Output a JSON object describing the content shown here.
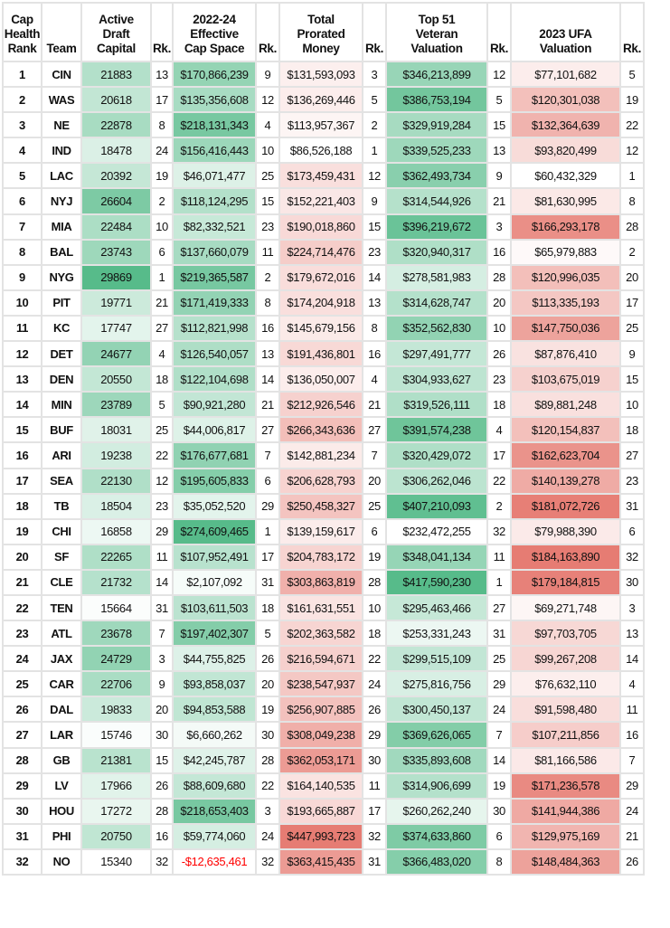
{
  "colors": {
    "green_max": "#57bb8a",
    "red_max": "#e67c73",
    "min": "#ffffff",
    "negative_text": "#ff0000"
  },
  "chart_data": {
    "type": "table",
    "columns": [
      "Cap Health Rank",
      "Team",
      "Active Draft Capital",
      "Rk.",
      "2022-24 Effective Cap Space",
      "Rk.",
      "Total Prorated Money",
      "Rk.",
      "Top 51 Veteran Valuation",
      "Rk.",
      "2023 UFA Valuation",
      "Rk."
    ],
    "color_scales": {
      "Active Draft Capital": "green-high",
      "2022-24 Effective Cap Space": "green-high",
      "Total Prorated Money": "red-high",
      "Top 51 Veteran Valuation": "green-high",
      "2023 UFA Valuation": "red-high"
    }
  },
  "table": {
    "headers": [
      "Cap\nHealth\nRank",
      "Team",
      "Active\nDraft\nCapital",
      "Rk.",
      "2022-24\nEffective\nCap Space",
      "Rk.",
      "Total\nProrated\nMoney",
      "Rk.",
      "Top 51\nVeteran\nValuation",
      "Rk.",
      "2023 UFA\nValuation",
      "Rk."
    ],
    "rows": [
      [
        "1",
        "CIN",
        "21883",
        "13",
        "$170,866,239",
        "9",
        "$131,593,093",
        "3",
        "$346,213,899",
        "12",
        "$77,101,682",
        "5"
      ],
      [
        "2",
        "WAS",
        "20618",
        "17",
        "$135,356,608",
        "12",
        "$136,269,446",
        "5",
        "$386,753,194",
        "5",
        "$120,301,038",
        "19"
      ],
      [
        "3",
        "NE",
        "22878",
        "8",
        "$218,131,343",
        "4",
        "$113,957,367",
        "2",
        "$329,919,284",
        "15",
        "$132,364,639",
        "22"
      ],
      [
        "4",
        "IND",
        "18478",
        "24",
        "$156,416,443",
        "10",
        "$86,526,188",
        "1",
        "$339,525,233",
        "13",
        "$93,820,499",
        "12"
      ],
      [
        "5",
        "LAC",
        "20392",
        "19",
        "$46,071,477",
        "25",
        "$173,459,431",
        "12",
        "$362,493,734",
        "9",
        "$60,432,329",
        "1"
      ],
      [
        "6",
        "NYJ",
        "26604",
        "2",
        "$118,124,295",
        "15",
        "$152,221,403",
        "9",
        "$314,544,926",
        "21",
        "$81,630,995",
        "8"
      ],
      [
        "7",
        "MIA",
        "22484",
        "10",
        "$82,332,521",
        "23",
        "$190,018,860",
        "15",
        "$396,219,672",
        "3",
        "$166,293,178",
        "28"
      ],
      [
        "8",
        "BAL",
        "23743",
        "6",
        "$137,660,079",
        "11",
        "$224,714,476",
        "23",
        "$320,940,317",
        "16",
        "$65,979,883",
        "2"
      ],
      [
        "9",
        "NYG",
        "29869",
        "1",
        "$219,365,587",
        "2",
        "$179,672,016",
        "14",
        "$278,581,983",
        "28",
        "$120,996,035",
        "20"
      ],
      [
        "10",
        "PIT",
        "19771",
        "21",
        "$171,419,333",
        "8",
        "$174,204,918",
        "13",
        "$314,628,747",
        "20",
        "$113,335,193",
        "17"
      ],
      [
        "11",
        "KC",
        "17747",
        "27",
        "$112,821,998",
        "16",
        "$145,679,156",
        "8",
        "$352,562,830",
        "10",
        "$147,750,036",
        "25"
      ],
      [
        "12",
        "DET",
        "24677",
        "4",
        "$126,540,057",
        "13",
        "$191,436,801",
        "16",
        "$297,491,777",
        "26",
        "$87,876,410",
        "9"
      ],
      [
        "13",
        "DEN",
        "20550",
        "18",
        "$122,104,698",
        "14",
        "$136,050,007",
        "4",
        "$304,933,627",
        "23",
        "$103,675,019",
        "15"
      ],
      [
        "14",
        "MIN",
        "23789",
        "5",
        "$90,921,280",
        "21",
        "$212,926,546",
        "21",
        "$319,526,111",
        "18",
        "$89,881,248",
        "10"
      ],
      [
        "15",
        "BUF",
        "18031",
        "25",
        "$44,006,817",
        "27",
        "$266,343,636",
        "27",
        "$391,574,238",
        "4",
        "$120,154,837",
        "18"
      ],
      [
        "16",
        "ARI",
        "19238",
        "22",
        "$176,677,681",
        "7",
        "$142,881,234",
        "7",
        "$320,429,072",
        "17",
        "$162,623,704",
        "27"
      ],
      [
        "17",
        "SEA",
        "22130",
        "12",
        "$195,605,833",
        "6",
        "$206,628,793",
        "20",
        "$306,262,046",
        "22",
        "$140,139,278",
        "23"
      ],
      [
        "18",
        "TB",
        "18504",
        "23",
        "$35,052,520",
        "29",
        "$250,458,327",
        "25",
        "$407,210,093",
        "2",
        "$181,072,726",
        "31"
      ],
      [
        "19",
        "CHI",
        "16858",
        "29",
        "$274,609,465",
        "1",
        "$139,159,617",
        "6",
        "$232,472,255",
        "32",
        "$79,988,390",
        "6"
      ],
      [
        "20",
        "SF",
        "22265",
        "11",
        "$107,952,491",
        "17",
        "$204,783,172",
        "19",
        "$348,041,134",
        "11",
        "$184,163,890",
        "32"
      ],
      [
        "21",
        "CLE",
        "21732",
        "14",
        "$2,107,092",
        "31",
        "$303,863,819",
        "28",
        "$417,590,230",
        "1",
        "$179,184,815",
        "30"
      ],
      [
        "22",
        "TEN",
        "15664",
        "31",
        "$103,611,503",
        "18",
        "$161,631,551",
        "10",
        "$295,463,466",
        "27",
        "$69,271,748",
        "3"
      ],
      [
        "23",
        "ATL",
        "23678",
        "7",
        "$197,402,307",
        "5",
        "$202,363,582",
        "18",
        "$253,331,243",
        "31",
        "$97,703,705",
        "13"
      ],
      [
        "24",
        "JAX",
        "24729",
        "3",
        "$44,755,825",
        "26",
        "$216,594,671",
        "22",
        "$299,515,109",
        "25",
        "$99,267,208",
        "14"
      ],
      [
        "25",
        "CAR",
        "22706",
        "9",
        "$93,858,037",
        "20",
        "$238,547,937",
        "24",
        "$275,816,756",
        "29",
        "$76,632,110",
        "4"
      ],
      [
        "26",
        "DAL",
        "19833",
        "20",
        "$94,853,588",
        "19",
        "$256,907,885",
        "26",
        "$300,450,137",
        "24",
        "$91,598,480",
        "11"
      ],
      [
        "27",
        "LAR",
        "15746",
        "30",
        "$6,660,262",
        "30",
        "$308,049,238",
        "29",
        "$369,626,065",
        "7",
        "$107,211,856",
        "16"
      ],
      [
        "28",
        "GB",
        "21381",
        "15",
        "$42,245,787",
        "28",
        "$362,053,171",
        "30",
        "$335,893,608",
        "14",
        "$81,166,586",
        "7"
      ],
      [
        "29",
        "LV",
        "17966",
        "26",
        "$88,609,680",
        "22",
        "$164,140,535",
        "11",
        "$314,906,699",
        "19",
        "$171,236,578",
        "29"
      ],
      [
        "30",
        "HOU",
        "17272",
        "28",
        "$218,653,403",
        "3",
        "$193,665,887",
        "17",
        "$260,262,240",
        "30",
        "$141,944,386",
        "24"
      ],
      [
        "31",
        "PHI",
        "20750",
        "16",
        "$59,774,060",
        "24",
        "$447,993,723",
        "32",
        "$374,633,860",
        "6",
        "$129,975,169",
        "21"
      ],
      [
        "32",
        "NO",
        "15340",
        "32",
        "-$12,635,461",
        "32",
        "$363,415,435",
        "31",
        "$366,483,020",
        "8",
        "$148,484,363",
        "26"
      ]
    ]
  }
}
